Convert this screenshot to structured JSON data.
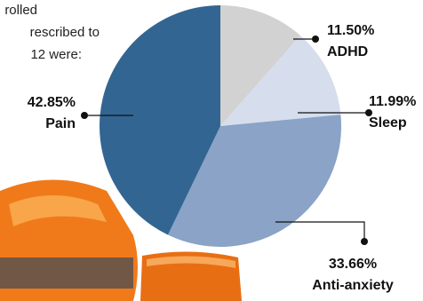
{
  "chart_data": {
    "type": "pie",
    "intro_lines": [
      "rolled",
      "rescribed to",
      "12 were:"
    ],
    "categories": [
      "ADHD",
      "Sleep",
      "Anti-anxiety",
      "Pain"
    ],
    "values": [
      11.5,
      11.99,
      33.66,
      42.85
    ],
    "value_labels": [
      "11.50%",
      "11.99%",
      "33.66%",
      "42.85%"
    ],
    "colors": [
      "#d2d2d2",
      "#d6ddec",
      "#8aa3c6",
      "#336592"
    ]
  }
}
